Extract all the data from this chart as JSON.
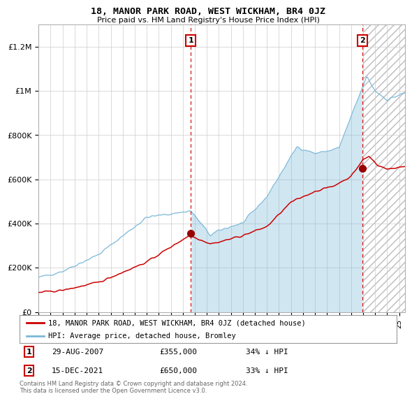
{
  "title": "18, MANOR PARK ROAD, WEST WICKHAM, BR4 0JZ",
  "subtitle": "Price paid vs. HM Land Registry's House Price Index (HPI)",
  "hpi_color": "#7ab8d9",
  "hpi_fill_color": "#d6eaf8",
  "price_color": "#cc0000",
  "marker_color": "#990000",
  "vline_color": "#cc0000",
  "background_color": "#ffffff",
  "grid_color": "#cccccc",
  "ylim": [
    0,
    1300000
  ],
  "yticks": [
    0,
    200000,
    400000,
    600000,
    800000,
    1000000,
    1200000
  ],
  "ytick_labels": [
    "£0",
    "£200K",
    "£400K",
    "£600K",
    "£800K",
    "£1M",
    "£1.2M"
  ],
  "sale1_date": 2007.66,
  "sale1_price": 355000,
  "sale1_label": "1",
  "sale2_date": 2021.96,
  "sale2_price": 650000,
  "sale2_label": "2",
  "legend_line1": "18, MANOR PARK ROAD, WEST WICKHAM, BR4 0JZ (detached house)",
  "legend_line2": "HPI: Average price, detached house, Bromley",
  "footer": "Contains HM Land Registry data © Crown copyright and database right 2024.\nThis data is licensed under the Open Government Licence v3.0.",
  "xmin": 1995.0,
  "xmax": 2025.5
}
